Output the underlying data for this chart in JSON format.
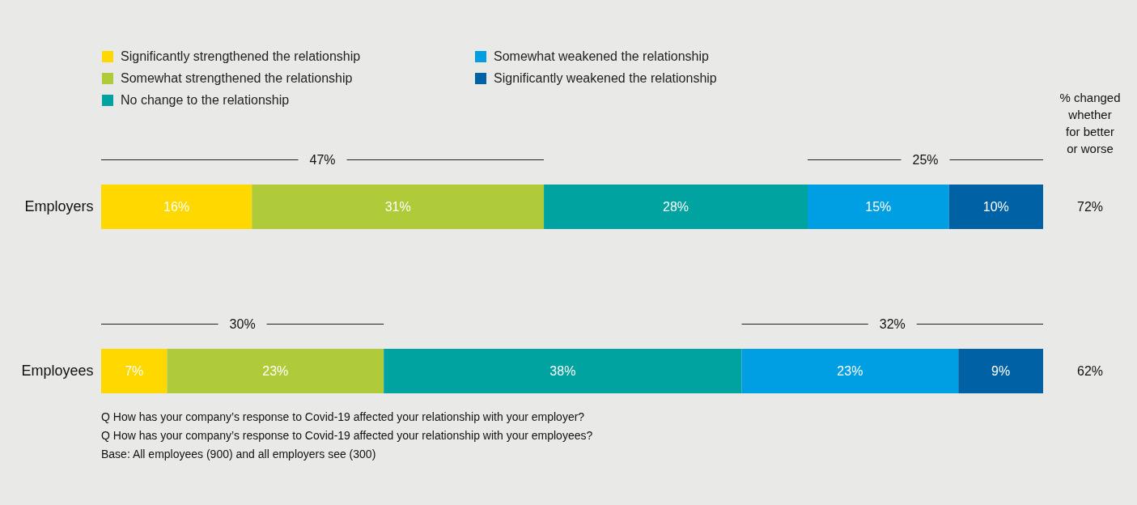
{
  "chart_data": {
    "type": "bar",
    "orientation": "horizontal",
    "stacked": true,
    "legend": "top left",
    "categories": [
      "Employers",
      "Employees"
    ],
    "series": [
      {
        "name": "Significantly strengthened the relationship",
        "color": "#ffd800",
        "values": [
          16,
          7
        ],
        "value_labels": [
          "16%",
          "7%"
        ]
      },
      {
        "name": "Somewhat strengthened the relationship",
        "color": "#b0cb3a",
        "values": [
          31,
          23
        ],
        "value_labels": [
          "31%",
          "23%"
        ]
      },
      {
        "name": "No change to the relationship",
        "color": "#00a39f",
        "values": [
          28,
          38
        ],
        "value_labels": [
          "28%",
          "38%"
        ]
      },
      {
        "name": "Somewhat weakened the relationship",
        "color": "#009fe3",
        "values": [
          15,
          23
        ],
        "value_labels": [
          "15%",
          "23%"
        ]
      },
      {
        "name": "Significantly weakened the relationship",
        "color": "#0062a5",
        "values": [
          10,
          9
        ],
        "value_labels": [
          "10%",
          "9%"
        ]
      }
    ],
    "annotations": [
      "% changed whether for better or worse",
      "47%",
      "25%",
      "30%",
      "32%",
      "72%",
      "62%",
      "Q How has your company’s response to Covid-19 affected your relationship with your employer?",
      "Q How has your company’s response to Covid-19 affected your relationship with your employees?",
      "Base: All employees (900) and all employers see (300)"
    ]
  }
}
